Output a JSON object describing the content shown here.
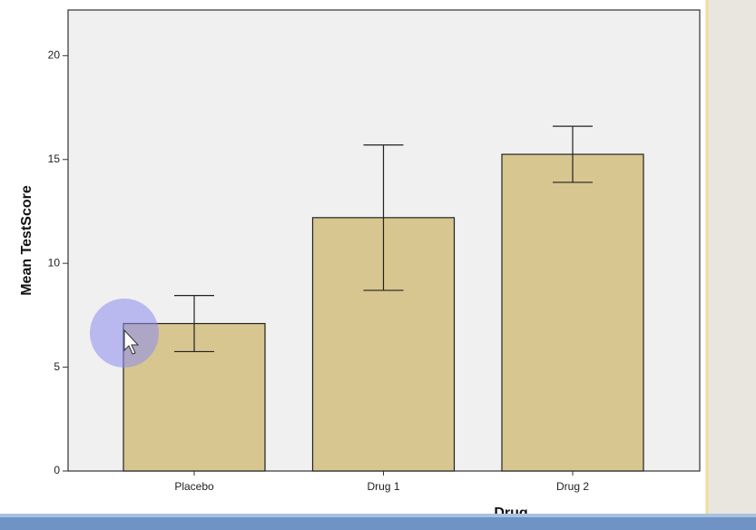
{
  "chart_data": {
    "type": "bar",
    "xlabel": "Drug",
    "ylabel": "Mean TestScore",
    "categories": [
      "Placebo",
      "Drug 1",
      "Drug 2"
    ],
    "values": [
      7.1,
      12.2,
      15.25
    ],
    "errors": [
      1.35,
      3.5,
      1.35
    ],
    "color": "#d8c690",
    "ylim": [
      0,
      22.2
    ],
    "yticks": [
      0,
      5,
      10,
      15,
      20
    ],
    "grid": false
  }
}
